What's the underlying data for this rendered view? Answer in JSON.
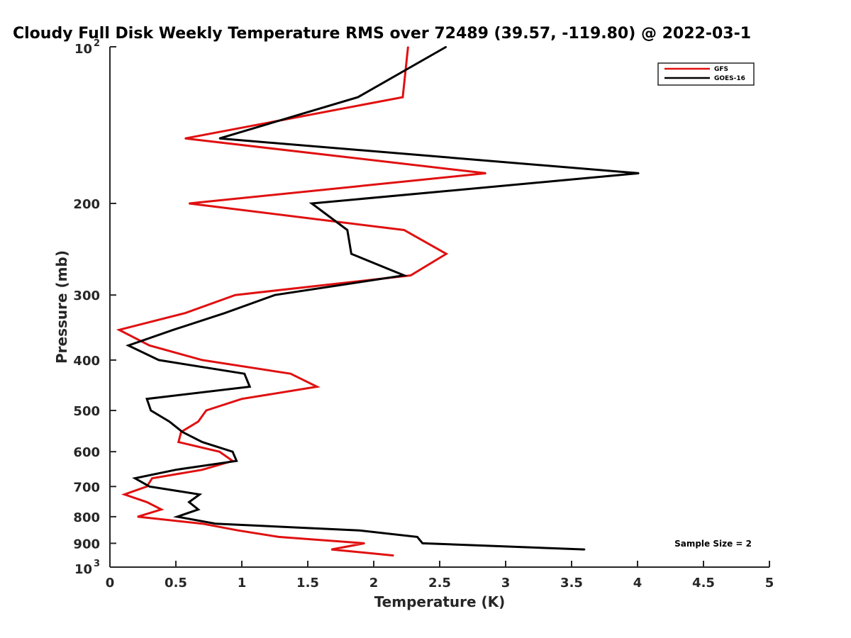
{
  "chart_data": {
    "type": "line",
    "title": "Cloudy Full Disk Weekly Temperature RMS over 72489 (39.57, -119.80) @ 2022-03-1",
    "xlabel": "Temperature (K)",
    "ylabel": "Pressure (mb)",
    "xlim": [
      0,
      5
    ],
    "ylim": [
      100,
      1000
    ],
    "y_scale": "log",
    "y_reversed": true,
    "grid": false,
    "legend_position": "top-right",
    "x_ticks": [
      "0",
      "0.5",
      "1",
      "1.5",
      "2",
      "2.5",
      "3",
      "3.5",
      "4",
      "4.5",
      "5"
    ],
    "y_ticks": [
      {
        "value": 100,
        "base": "10",
        "exp": "2"
      },
      {
        "value": 200,
        "label": "200"
      },
      {
        "value": 300,
        "label": "300"
      },
      {
        "value": 400,
        "label": "400"
      },
      {
        "value": 500,
        "label": "500"
      },
      {
        "value": 600,
        "label": "600"
      },
      {
        "value": 700,
        "label": "700"
      },
      {
        "value": 800,
        "label": "800"
      },
      {
        "value": 900,
        "label": "900"
      },
      {
        "value": 1000,
        "base": "10",
        "exp": "3"
      }
    ],
    "annotation": "Sample Size = 2",
    "series": [
      {
        "name": "GFS",
        "color": "#e01010",
        "points": [
          [
            2.26,
            100
          ],
          [
            2.22,
            125
          ],
          [
            0.57,
            150
          ],
          [
            2.85,
            175
          ],
          [
            0.6,
            200
          ],
          [
            2.23,
            225
          ],
          [
            2.55,
            250
          ],
          [
            2.28,
            275
          ],
          [
            0.95,
            300
          ],
          [
            0.57,
            325
          ],
          [
            0.07,
            350
          ],
          [
            0.3,
            375
          ],
          [
            0.7,
            400
          ],
          [
            1.37,
            425
          ],
          [
            1.57,
            450
          ],
          [
            1.0,
            475
          ],
          [
            0.73,
            500
          ],
          [
            0.67,
            525
          ],
          [
            0.54,
            550
          ],
          [
            0.52,
            575
          ],
          [
            0.83,
            600
          ],
          [
            0.93,
            625
          ],
          [
            0.7,
            650
          ],
          [
            0.32,
            675
          ],
          [
            0.28,
            700
          ],
          [
            0.11,
            725
          ],
          [
            0.28,
            750
          ],
          [
            0.39,
            775
          ],
          [
            0.21,
            800
          ],
          [
            0.7,
            825
          ],
          [
            0.97,
            850
          ],
          [
            1.28,
            875
          ],
          [
            1.93,
            900
          ],
          [
            1.68,
            925
          ],
          [
            2.15,
            950
          ]
        ]
      },
      {
        "name": "GOES-16",
        "color": "#000000",
        "points": [
          [
            2.55,
            100
          ],
          [
            1.88,
            125
          ],
          [
            0.83,
            150
          ],
          [
            4.01,
            175
          ],
          [
            1.53,
            200
          ],
          [
            1.8,
            225
          ],
          [
            1.83,
            250
          ],
          [
            2.23,
            275
          ],
          [
            1.25,
            300
          ],
          [
            0.87,
            325
          ],
          [
            0.48,
            350
          ],
          [
            0.14,
            375
          ],
          [
            0.37,
            400
          ],
          [
            1.02,
            425
          ],
          [
            1.06,
            450
          ],
          [
            0.28,
            475
          ],
          [
            0.31,
            500
          ],
          [
            0.45,
            525
          ],
          [
            0.55,
            550
          ],
          [
            0.7,
            575
          ],
          [
            0.93,
            600
          ],
          [
            0.96,
            625
          ],
          [
            0.5,
            650
          ],
          [
            0.19,
            675
          ],
          [
            0.3,
            700
          ],
          [
            0.68,
            725
          ],
          [
            0.6,
            750
          ],
          [
            0.67,
            775
          ],
          [
            0.51,
            800
          ],
          [
            0.8,
            825
          ],
          [
            1.89,
            850
          ],
          [
            2.33,
            875
          ],
          [
            2.37,
            900
          ],
          [
            3.6,
            925
          ]
        ]
      }
    ]
  }
}
